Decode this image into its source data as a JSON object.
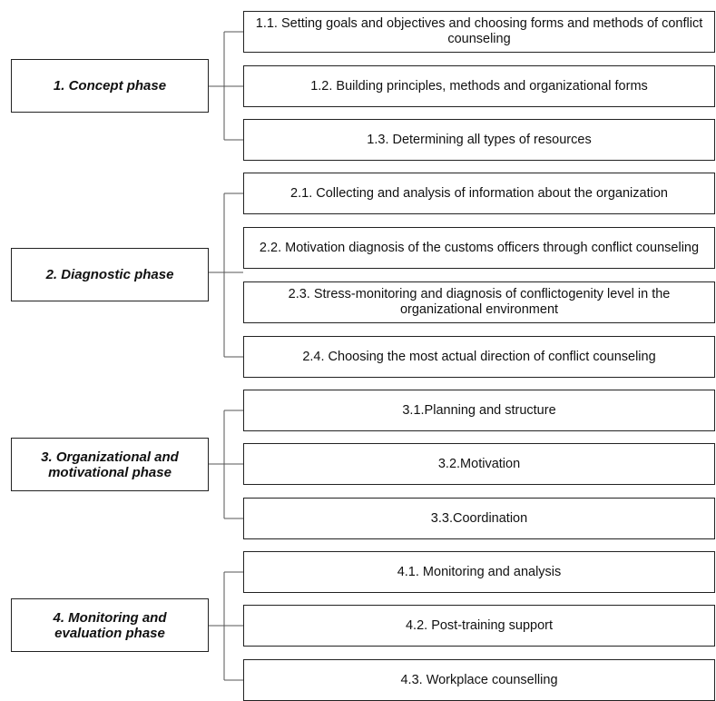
{
  "phases": [
    {
      "label": "1. Concept phase",
      "steps": [
        "1.1. Setting goals and objectives and choosing forms and methods of conflict counseling",
        "1.2. Building principles, methods and organizational forms",
        "1.3. Determining all types of resources"
      ]
    },
    {
      "label": "2. Diagnostic phase",
      "steps": [
        "2.1. Collecting and analysis of information about the organization",
        "2.2. Motivation diagnosis of the customs officers through conflict counseling",
        "2.3. Stress-monitoring and diagnosis of conflictogenity level in the organizational environment",
        "2.4. Choosing the most actual direction of conflict counseling"
      ]
    },
    {
      "label": "3. Organizational and motivational phase",
      "steps": [
        "3.1.Planning and structure",
        "3.2.Motivation",
        "3.3.Coordination"
      ]
    },
    {
      "label": "4. Monitoring and evaluation phase",
      "steps": [
        "4.1. Monitoring and analysis",
        "4.2. Post-training support",
        "4.3. Workplace counselling"
      ]
    }
  ]
}
